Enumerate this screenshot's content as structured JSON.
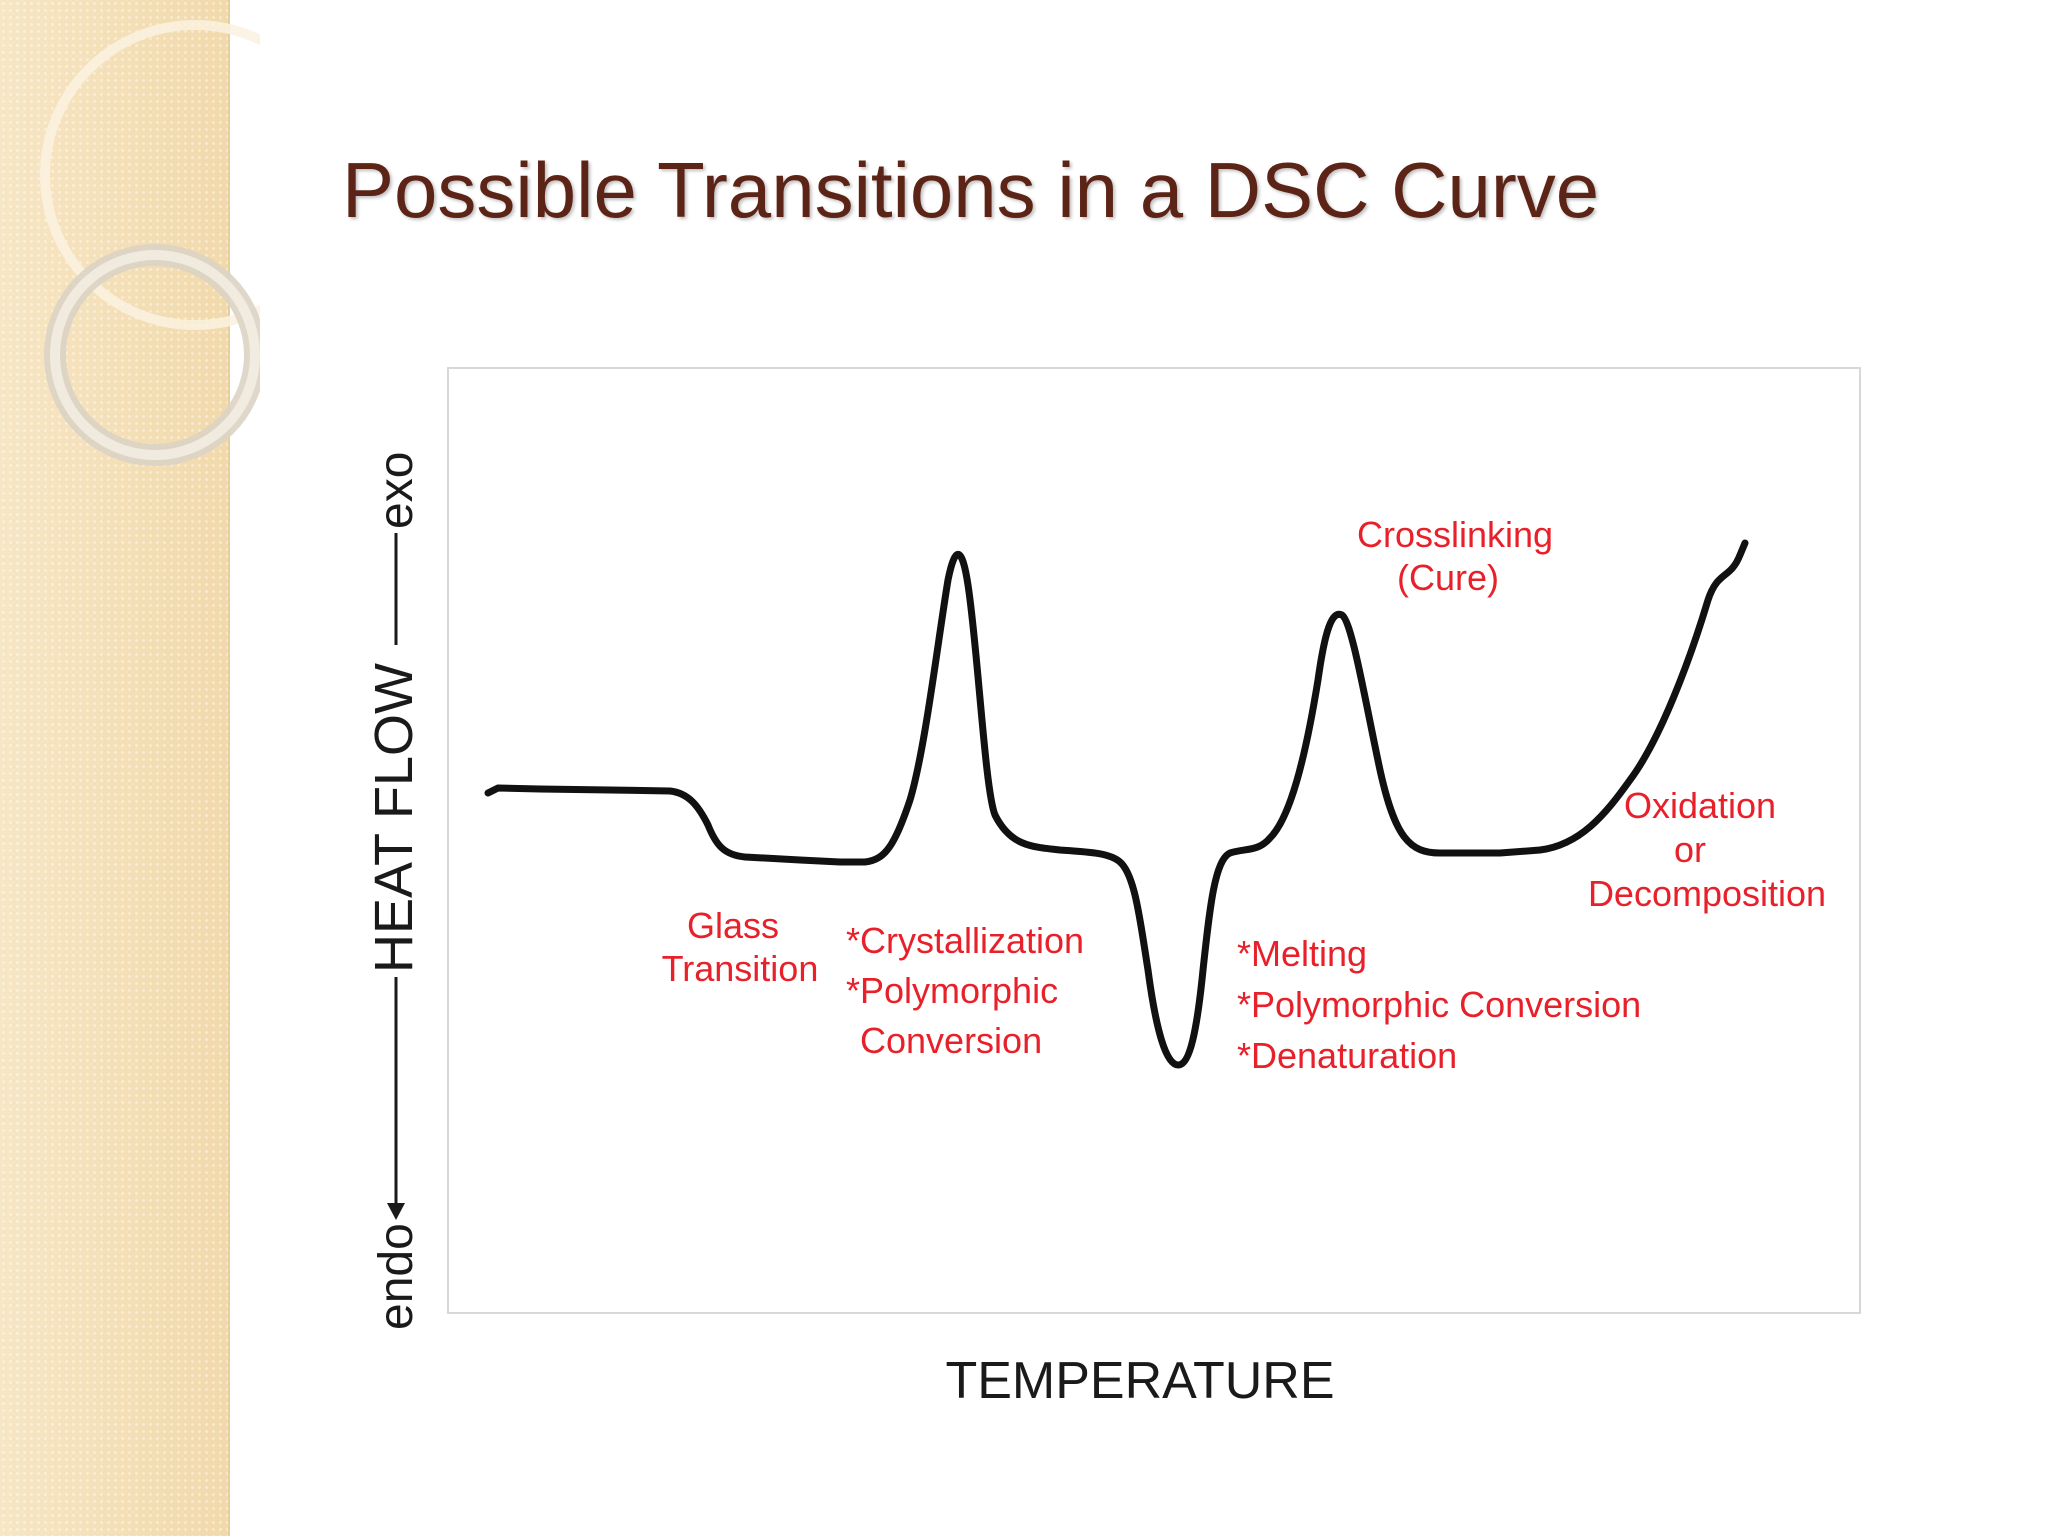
{
  "slide": {
    "title": "Possible Transitions in a DSC Curve"
  },
  "diagram": {
    "x_axis_label": "TEMPERATURE",
    "y_axis": {
      "label": "HEAT FLOW",
      "bottom": "endo",
      "top": "exo"
    },
    "annotations": {
      "glass_transition": [
        "Glass",
        "Transition"
      ],
      "crystallization": [
        "*Crystallization",
        "*Polymorphic",
        "Conversion"
      ],
      "melting": [
        "*Melting",
        "*Polymorphic Conversion",
        "*Denaturation"
      ],
      "crosslinking": [
        "Crosslinking",
        "(Cure)"
      ],
      "oxidation": [
        "Oxidation",
        "or",
        "Decomposition"
      ]
    },
    "colors": {
      "curve": "#111111",
      "annotation_text": "#e8202a",
      "axis_text": "#1a1a1a",
      "title": "#5c2416"
    }
  }
}
